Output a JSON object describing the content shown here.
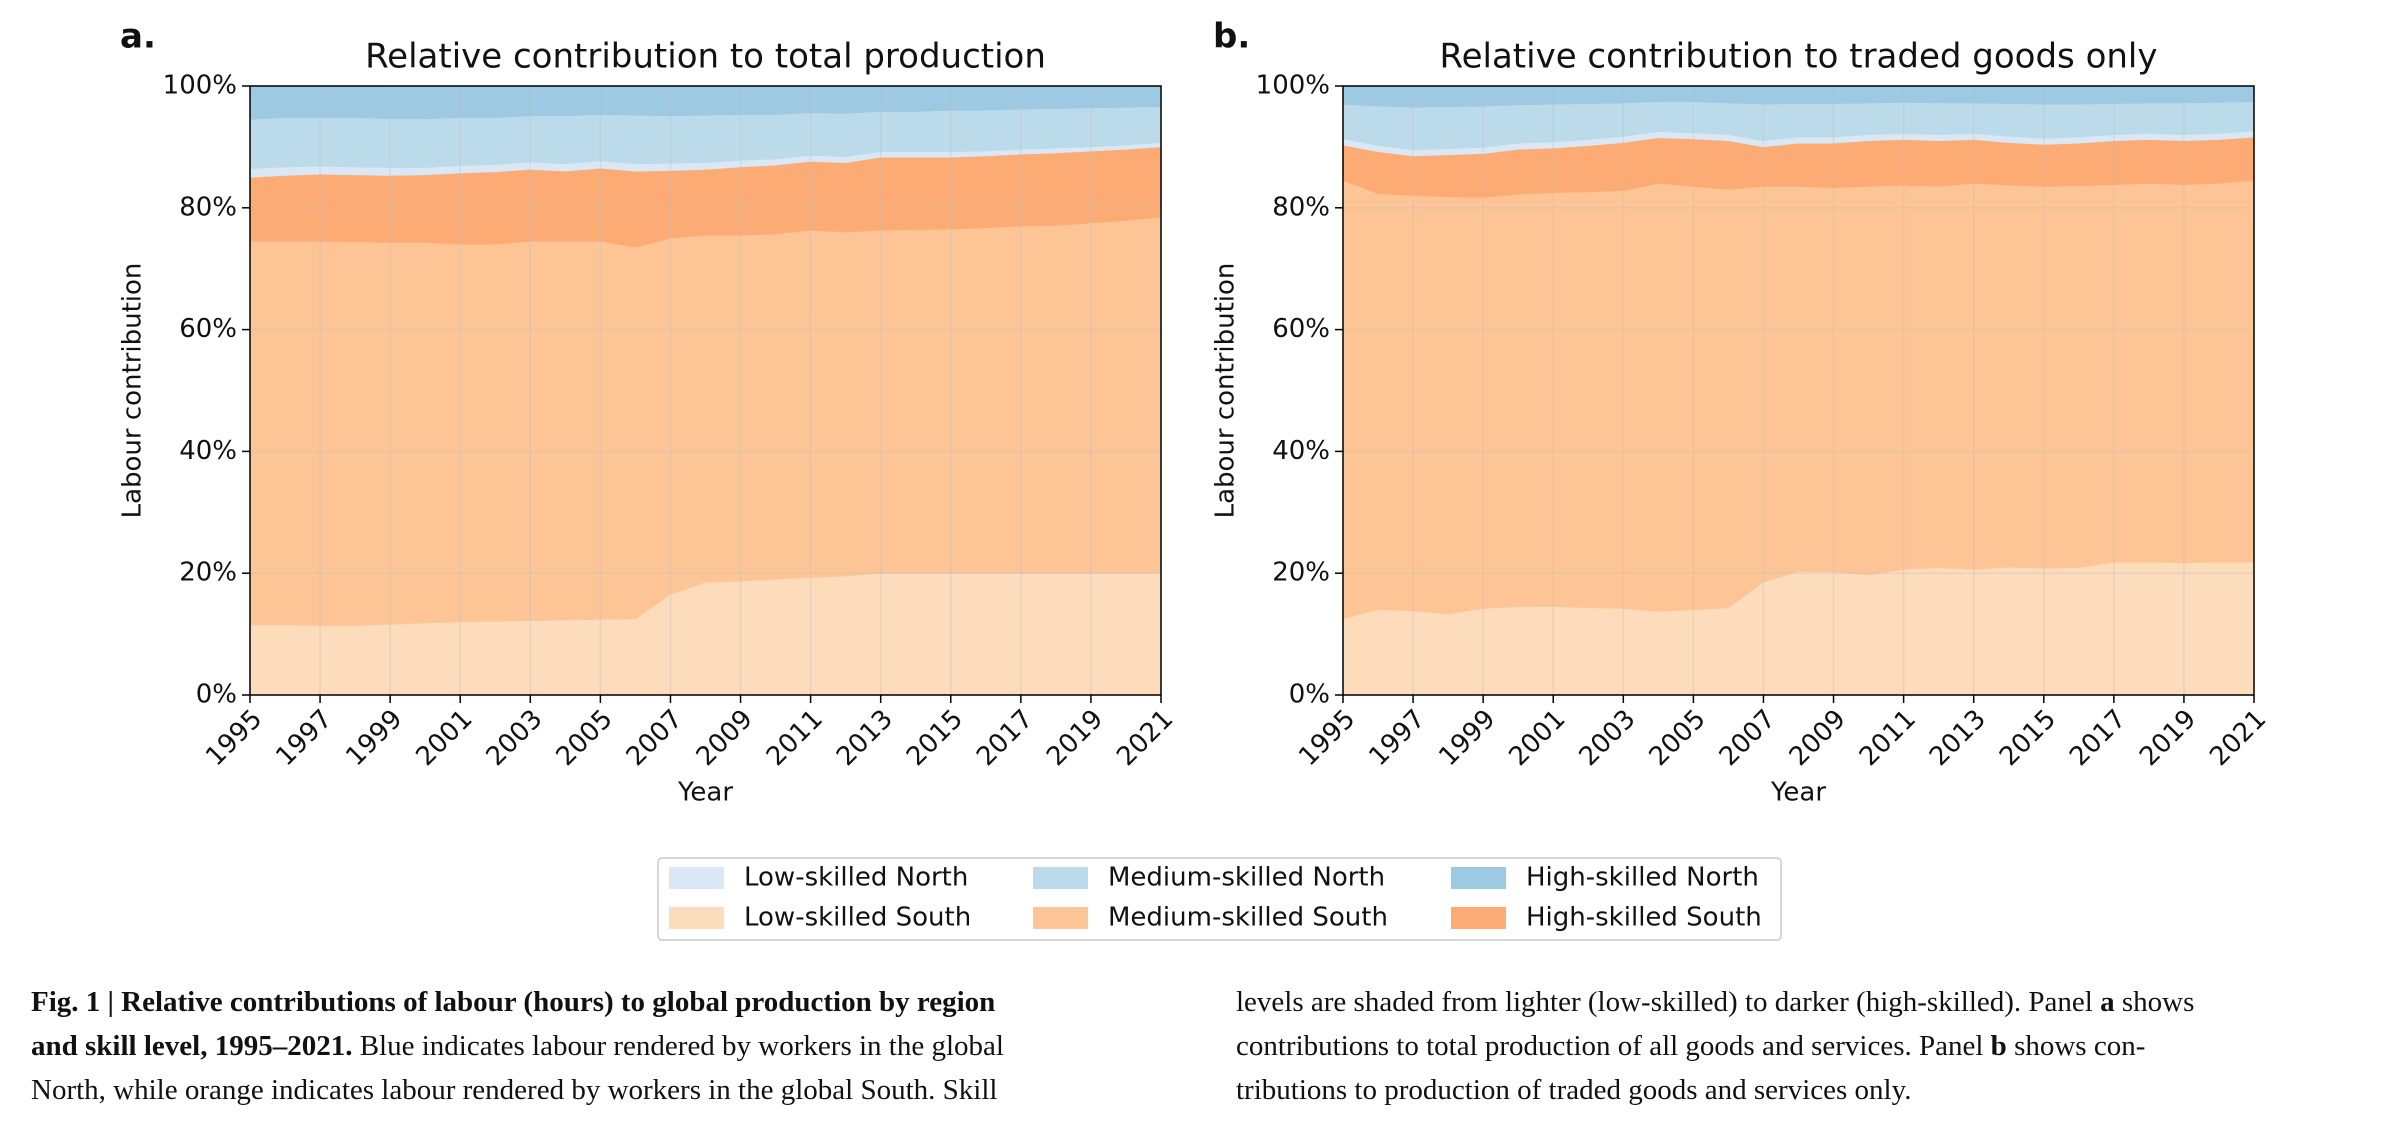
{
  "chart_data": [
    {
      "type": "stacked_area",
      "panel_label": "a.",
      "title": "Relative contribution to total production",
      "x_label": "Year",
      "y_label": "Labour contribution",
      "x": [
        1995,
        1996,
        1997,
        1998,
        1999,
        2000,
        2001,
        2002,
        2003,
        2004,
        2005,
        2006,
        2007,
        2008,
        2009,
        2010,
        2011,
        2012,
        2013,
        2014,
        2015,
        2016,
        2017,
        2018,
        2019,
        2020,
        2021
      ],
      "xlim": [
        1995,
        2021
      ],
      "xticks": [
        1995,
        1997,
        1999,
        2001,
        2003,
        2005,
        2007,
        2009,
        2011,
        2013,
        2015,
        2017,
        2019,
        2021
      ],
      "ylim": [
        0,
        100
      ],
      "yticks": [
        {
          "value": 0,
          "label": "0%"
        },
        {
          "value": 20,
          "label": "20%"
        },
        {
          "value": 40,
          "label": "40%"
        },
        {
          "value": 60,
          "label": "60%"
        },
        {
          "value": 80,
          "label": "80%"
        },
        {
          "value": 100,
          "label": "100%"
        }
      ],
      "grid": true,
      "series": [
        {
          "name": "Low-skilled South",
          "color": "#fddcbc",
          "values": [
            11.5,
            11.5,
            11.4,
            11.4,
            11.6,
            11.8,
            12.0,
            12.1,
            12.2,
            12.3,
            12.4,
            12.5,
            16.5,
            18.5,
            18.7,
            19.0,
            19.3,
            19.5,
            20.0,
            20.0,
            20.0,
            20.0,
            20.0,
            20.0,
            20.0,
            20.0,
            20.0
          ]
        },
        {
          "name": "Medium-skilled South",
          "color": "#fdc596",
          "values": [
            63.0,
            63.0,
            63.1,
            63.0,
            62.7,
            62.5,
            62.0,
            61.9,
            62.3,
            62.2,
            62.1,
            61.0,
            58.5,
            57.0,
            56.8,
            56.7,
            57.0,
            56.5,
            56.3,
            56.4,
            56.5,
            56.7,
            57.0,
            57.1,
            57.5,
            57.9,
            58.5
          ]
        },
        {
          "name": "High-skilled South",
          "color": "#fcab74",
          "values": [
            10.5,
            10.8,
            11.0,
            11.0,
            11.0,
            11.1,
            11.7,
            11.9,
            11.8,
            11.5,
            12.0,
            12.5,
            11.1,
            10.8,
            11.2,
            11.3,
            11.3,
            11.4,
            12.0,
            11.9,
            11.8,
            11.8,
            11.8,
            11.9,
            11.8,
            11.7,
            11.5
          ]
        },
        {
          "name": "Low-skilled North",
          "color": "#dae8f5",
          "values": [
            1.4,
            1.4,
            1.3,
            1.3,
            1.3,
            1.2,
            1.2,
            1.2,
            1.2,
            1.2,
            1.2,
            1.2,
            1.2,
            1.1,
            1.1,
            1.0,
            1.0,
            1.0,
            0.9,
            0.9,
            0.9,
            0.8,
            0.8,
            0.8,
            0.7,
            0.7,
            0.7
          ]
        },
        {
          "name": "Medium-skilled North",
          "color": "#bcdbea",
          "values": [
            8.1,
            8.1,
            8.0,
            8.1,
            8.0,
            8.0,
            7.9,
            7.7,
            7.6,
            7.9,
            7.6,
            8.0,
            7.8,
            7.8,
            7.5,
            7.3,
            7.0,
            7.1,
            6.6,
            6.6,
            6.8,
            6.7,
            6.6,
            6.5,
            6.4,
            6.2,
            5.9
          ]
        },
        {
          "name": "High-skilled North",
          "color": "#9dc9e2",
          "values": [
            5.5,
            5.2,
            5.2,
            5.2,
            5.4,
            5.4,
            5.2,
            5.2,
            4.9,
            4.9,
            4.7,
            4.8,
            4.9,
            4.8,
            4.7,
            4.7,
            4.4,
            4.5,
            4.2,
            4.2,
            4.0,
            4.0,
            3.8,
            3.7,
            3.6,
            3.5,
            3.4
          ]
        }
      ]
    },
    {
      "type": "stacked_area",
      "panel_label": "b.",
      "title": "Relative contribution to traded goods only",
      "x_label": "Year",
      "y_label": "Labour contribution",
      "x": [
        1995,
        1996,
        1997,
        1998,
        1999,
        2000,
        2001,
        2002,
        2003,
        2004,
        2005,
        2006,
        2007,
        2008,
        2009,
        2010,
        2011,
        2012,
        2013,
        2014,
        2015,
        2016,
        2017,
        2018,
        2019,
        2020,
        2021
      ],
      "xlim": [
        1995,
        2021
      ],
      "xticks": [
        1995,
        1997,
        1999,
        2001,
        2003,
        2005,
        2007,
        2009,
        2011,
        2013,
        2015,
        2017,
        2019,
        2021
      ],
      "ylim": [
        0,
        100
      ],
      "yticks": [
        {
          "value": 0,
          "label": "0%"
        },
        {
          "value": 20,
          "label": "20%"
        },
        {
          "value": 40,
          "label": "40%"
        },
        {
          "value": 60,
          "label": "60%"
        },
        {
          "value": 80,
          "label": "80%"
        },
        {
          "value": 100,
          "label": "100%"
        }
      ],
      "grid": true,
      "series": [
        {
          "name": "Low-skilled South",
          "color": "#fddcbc",
          "values": [
            12.5,
            14.0,
            13.8,
            13.3,
            14.2,
            14.5,
            14.5,
            14.3,
            14.2,
            13.7,
            14.0,
            14.3,
            18.5,
            20.3,
            20.2,
            19.7,
            20.6,
            20.9,
            20.6,
            21.0,
            20.8,
            20.9,
            21.8,
            21.8,
            21.7,
            21.8,
            21.8
          ]
        },
        {
          "name": "Medium-skilled South",
          "color": "#fdc596",
          "values": [
            72.0,
            68.3,
            68.2,
            68.5,
            67.5,
            67.7,
            68.0,
            68.3,
            68.6,
            70.3,
            69.5,
            68.7,
            65.0,
            63.2,
            63.1,
            63.8,
            63.1,
            62.6,
            63.4,
            62.7,
            62.7,
            62.7,
            62.0,
            62.2,
            62.1,
            62.2,
            62.7
          ]
        },
        {
          "name": "High-skilled South",
          "color": "#fcab74",
          "values": [
            5.8,
            6.9,
            6.5,
            6.9,
            7.2,
            7.4,
            7.3,
            7.6,
            7.9,
            7.5,
            7.8,
            8.0,
            6.5,
            7.1,
            7.3,
            7.5,
            7.5,
            7.5,
            7.2,
            7.0,
            6.9,
            7.0,
            7.2,
            7.2,
            7.2,
            7.2,
            7.1
          ]
        },
        {
          "name": "Low-skilled North",
          "color": "#dae8f5",
          "values": [
            1.0,
            1.0,
            1.0,
            1.0,
            1.0,
            1.0,
            1.0,
            1.0,
            1.0,
            1.0,
            1.0,
            1.0,
            1.0,
            1.0,
            1.0,
            1.0,
            1.0,
            1.0,
            1.0,
            1.0,
            1.0,
            1.0,
            1.0,
            1.0,
            1.0,
            1.0,
            1.0
          ]
        },
        {
          "name": "Medium-skilled North",
          "color": "#bcdbea",
          "values": [
            5.7,
            6.5,
            7.0,
            6.9,
            6.8,
            6.3,
            6.2,
            5.9,
            5.5,
            4.9,
            5.1,
            5.2,
            6.0,
            5.5,
            5.5,
            5.2,
            5.1,
            5.2,
            5.0,
            5.4,
            5.6,
            5.4,
            5.1,
            5.0,
            5.2,
            5.1,
            4.8
          ]
        },
        {
          "name": "High-skilled North",
          "color": "#9dc9e2",
          "values": [
            3.0,
            3.3,
            3.5,
            3.4,
            3.3,
            3.1,
            3.0,
            2.9,
            2.8,
            2.6,
            2.6,
            2.8,
            3.0,
            2.9,
            2.9,
            2.8,
            2.7,
            2.8,
            2.8,
            2.9,
            3.0,
            3.0,
            2.9,
            2.8,
            2.8,
            2.7,
            2.6
          ]
        }
      ]
    }
  ],
  "caption": {
    "left": [
      [
        {
          "text": "Fig. 1 | Relative contributions of labour (hours) to global production by region",
          "bold": true
        }
      ],
      [
        {
          "text": "and skill level, 1995–2021.",
          "bold": true
        },
        {
          "text": " Blue indicates labour rendered by workers in the global",
          "bold": false
        }
      ],
      [
        {
          "text": "North, while orange indicates labour rendered by workers in the global South. Skill",
          "bold": false
        }
      ]
    ],
    "right": [
      [
        {
          "text": "levels are shaded from lighter (low-skilled) to darker (high-skilled). Panel ",
          "bold": false
        },
        {
          "text": "a",
          "bold": true
        },
        {
          "text": " shows",
          "bold": false
        }
      ],
      [
        {
          "text": "contributions to total production of all goods and services. Panel ",
          "bold": false
        },
        {
          "text": "b",
          "bold": true
        },
        {
          "text": " shows con-",
          "bold": false
        }
      ],
      [
        {
          "text": "tributions to production of traded goods and services only.",
          "bold": false
        }
      ]
    ]
  }
}
